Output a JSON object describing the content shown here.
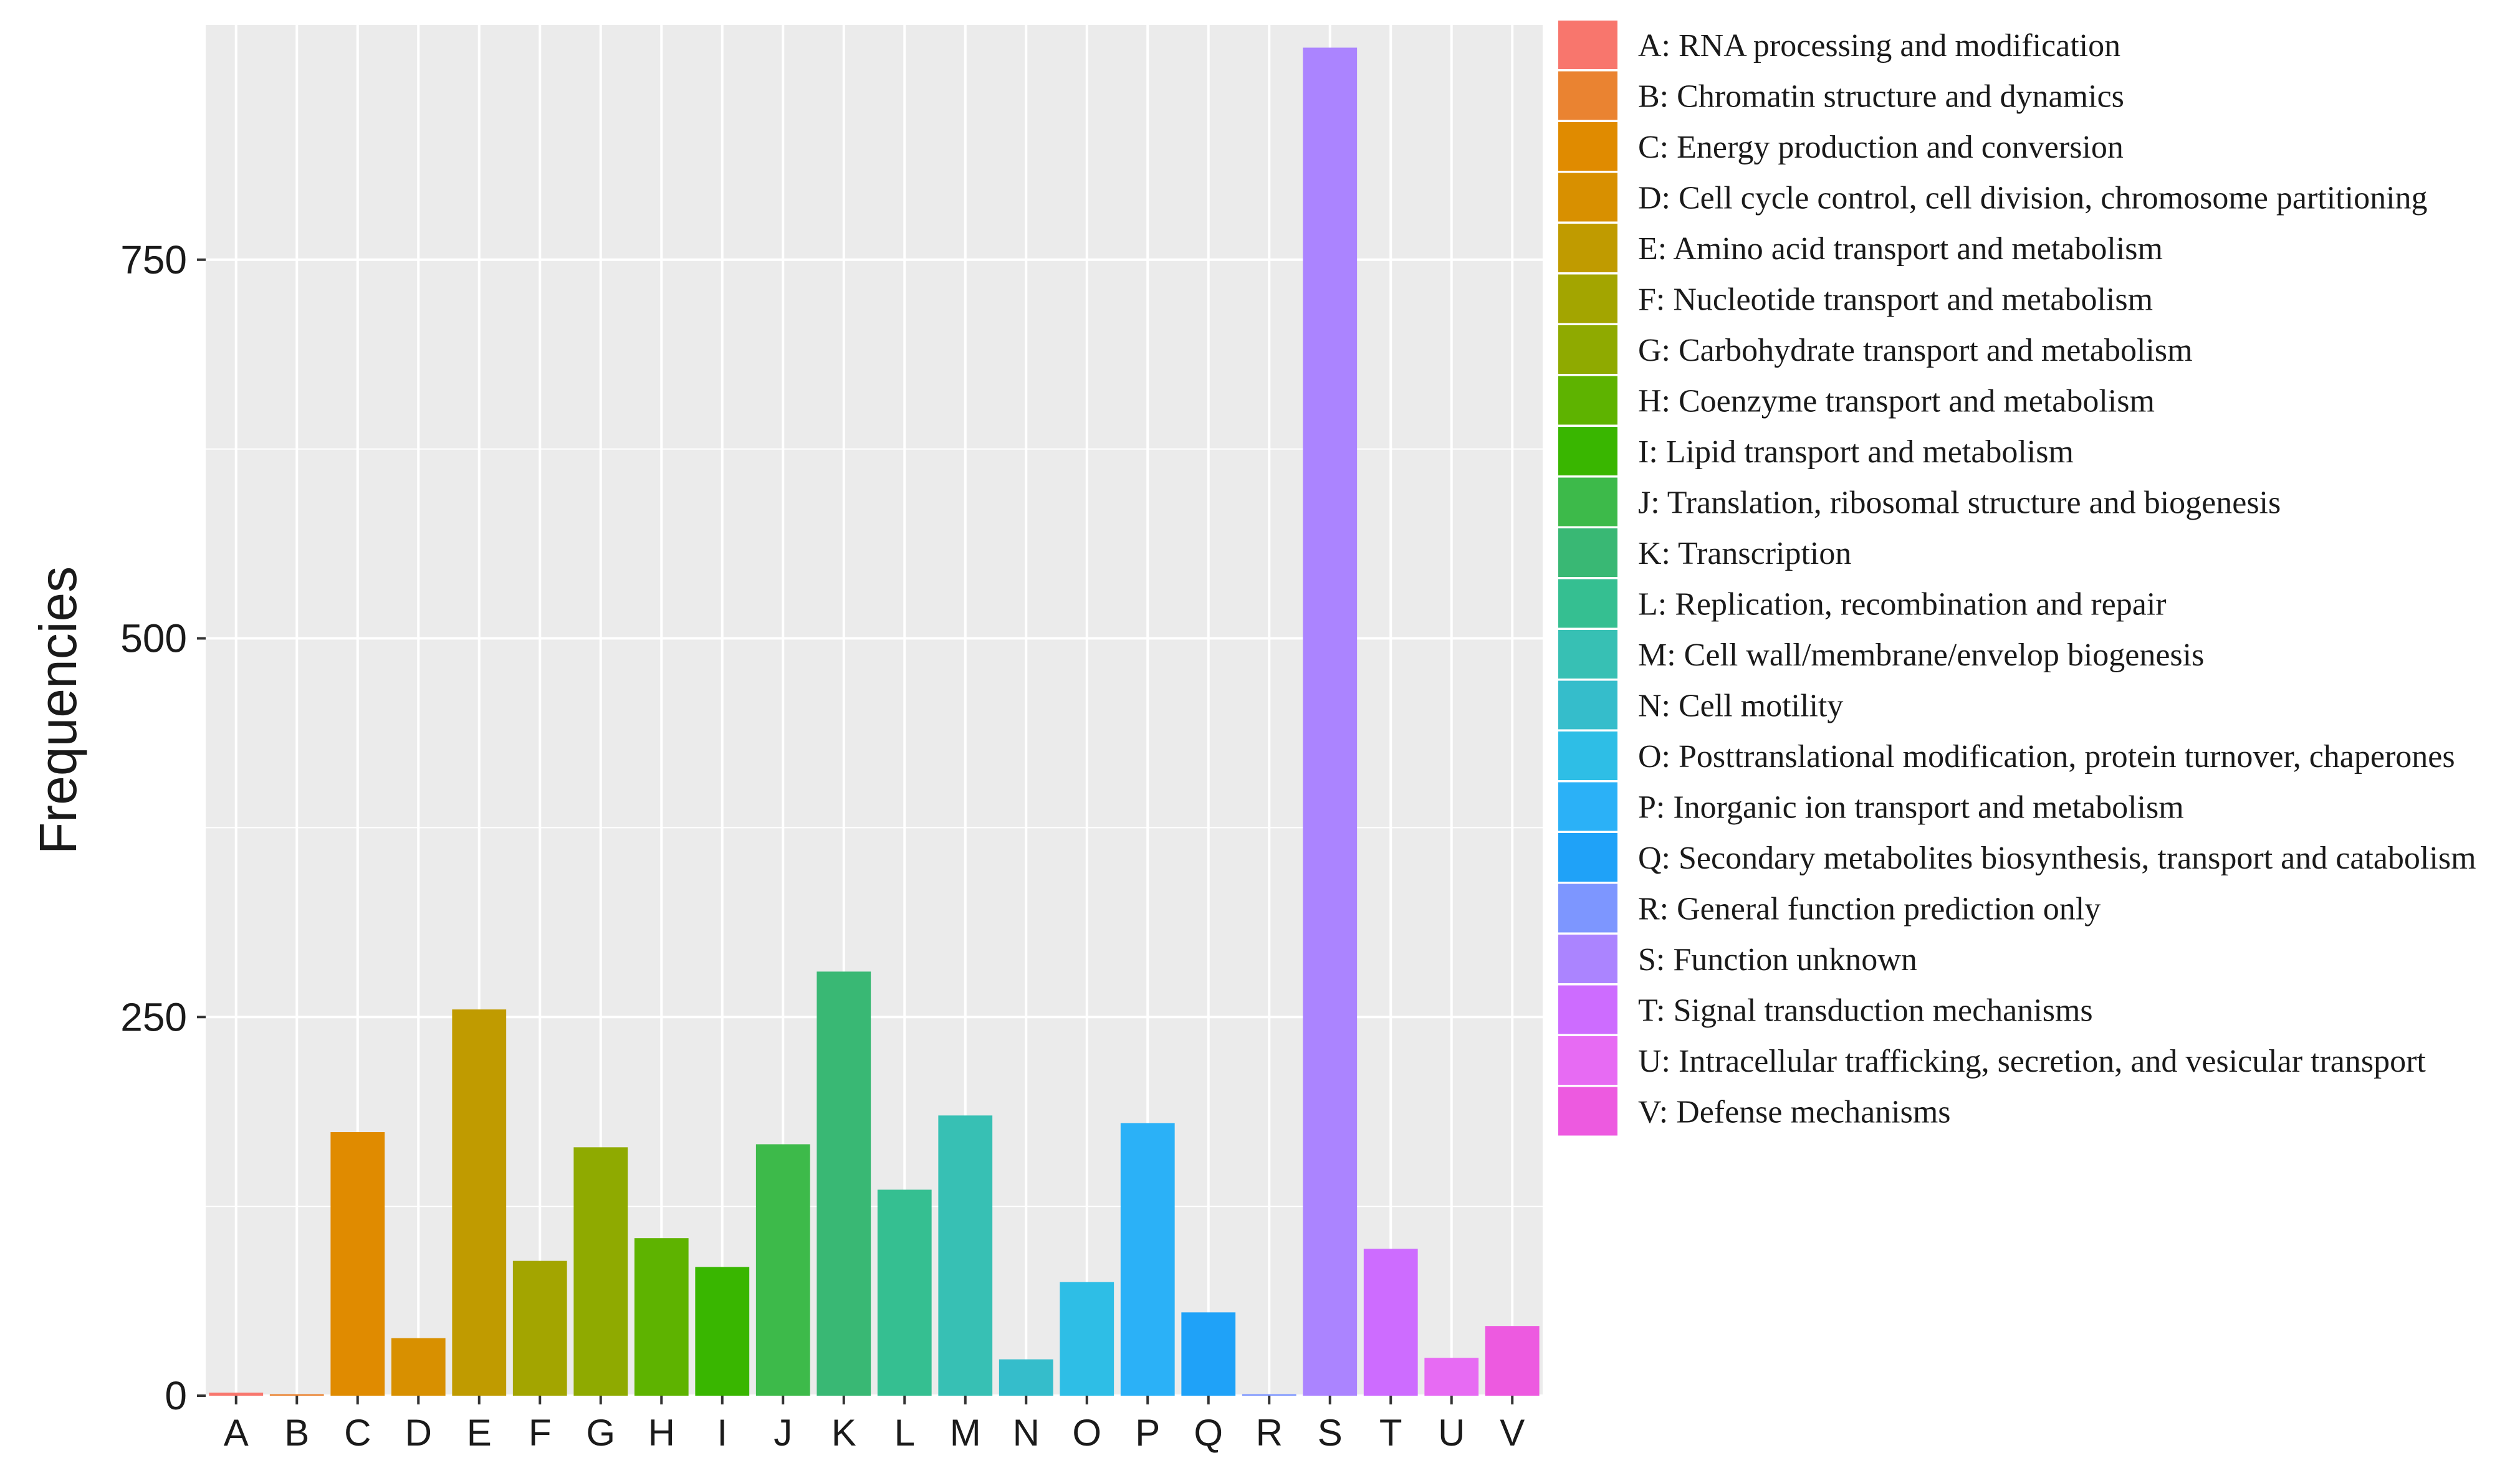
{
  "chart_data": {
    "type": "bar",
    "title": "",
    "xlabel": "",
    "ylabel": "Frequencies",
    "ylim": [
      0,
      905
    ],
    "yticks": [
      0,
      250,
      500,
      750
    ],
    "grid": true,
    "legend_position": "right",
    "categories": [
      "A",
      "B",
      "C",
      "D",
      "E",
      "F",
      "G",
      "H",
      "I",
      "J",
      "K",
      "L",
      "M",
      "N",
      "O",
      "P",
      "Q",
      "R",
      "S",
      "T",
      "U",
      "V"
    ],
    "values": [
      2,
      1,
      174,
      38,
      255,
      89,
      164,
      104,
      85,
      166,
      280,
      136,
      185,
      24,
      75,
      180,
      55,
      1,
      890,
      97,
      25,
      46
    ],
    "colors": [
      "#F8766D",
      "#EA8331",
      "#E08B00",
      "#D89000",
      "#C09B00",
      "#A3A500",
      "#8FAA00",
      "#5EB300",
      "#39B600",
      "#3DBA4A",
      "#39B874",
      "#35BF91",
      "#37C0B4",
      "#35BDCB",
      "#2EBEE6",
      "#2BB1F7",
      "#1FA2F8",
      "#7D96FF",
      "#AB84FF",
      "#CD6CFF",
      "#E76BF3",
      "#ED5AE0"
    ],
    "legend": [
      "A: RNA processing and modification",
      "B: Chromatin structure and dynamics",
      "C: Energy production and conversion",
      "D: Cell cycle control, cell division, chromosome partitioning",
      "E: Amino acid transport and metabolism",
      "F: Nucleotide transport and metabolism",
      "G: Carbohydrate transport and metabolism",
      "H: Coenzyme transport and metabolism",
      "I: Lipid transport and metabolism",
      "J: Translation, ribosomal structure and biogenesis",
      "K: Transcription",
      "L: Replication, recombination and repair",
      "M: Cell wall/membrane/envelop biogenesis",
      "N: Cell motility",
      "O: Posttranslational modification, protein turnover, chaperones",
      "P: Inorganic ion transport and metabolism",
      "Q: Secondary metabolites biosynthesis, transport and catabolism",
      "R: General function prediction only",
      "S: Function unknown",
      "T: Signal transduction mechanisms",
      "U: Intracellular trafficking, secretion, and vesicular transport",
      "V: Defense mechanisms"
    ]
  }
}
